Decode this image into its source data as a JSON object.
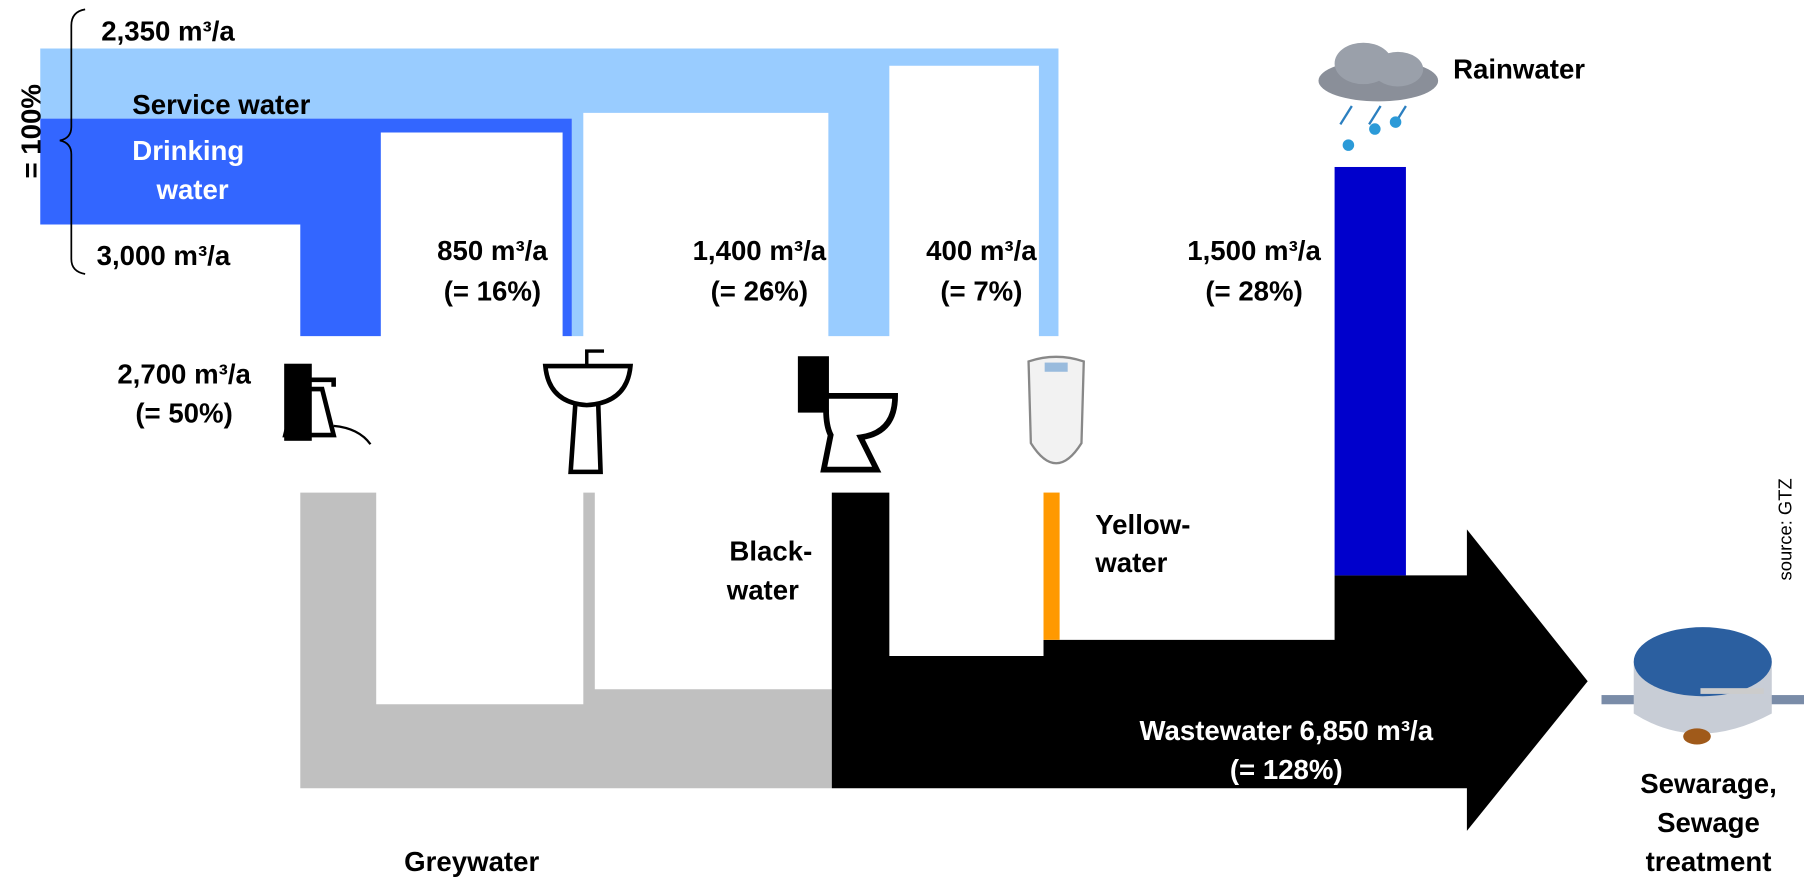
{
  "flows": {
    "service_water": {
      "amount": "2,350 m³/a",
      "label": "Service water"
    },
    "total_share": "= 100%",
    "drinking_water": {
      "amount": "3,000 m³/a",
      "label": [
        "Drinking",
        "water"
      ]
    },
    "coffee": {
      "amount": "2,700 m³/a",
      "share": "(= 50%)"
    },
    "sink": {
      "amount": "850 m³/a",
      "share": "(= 16%)"
    },
    "toilet": {
      "amount": "1,400 m³/a",
      "share": "(= 26%)"
    },
    "urinal": {
      "amount": "400 m³/a",
      "share": "(= 7%)"
    },
    "rain": {
      "amount": "1,500 m³/a",
      "share": "(= 28%)",
      "label": "Rainwater"
    },
    "blackwater": [
      "Black-",
      "water"
    ],
    "yellowwater": [
      "Yellow-",
      "water"
    ],
    "greywater": "Greywater",
    "wastewater": {
      "amount": "Wastewater 6,850 m³/a",
      "share": "(= 128%)"
    },
    "treatment": [
      "Sewarage,",
      "Sewage",
      "treatment"
    ]
  },
  "source": "source: GTZ"
}
